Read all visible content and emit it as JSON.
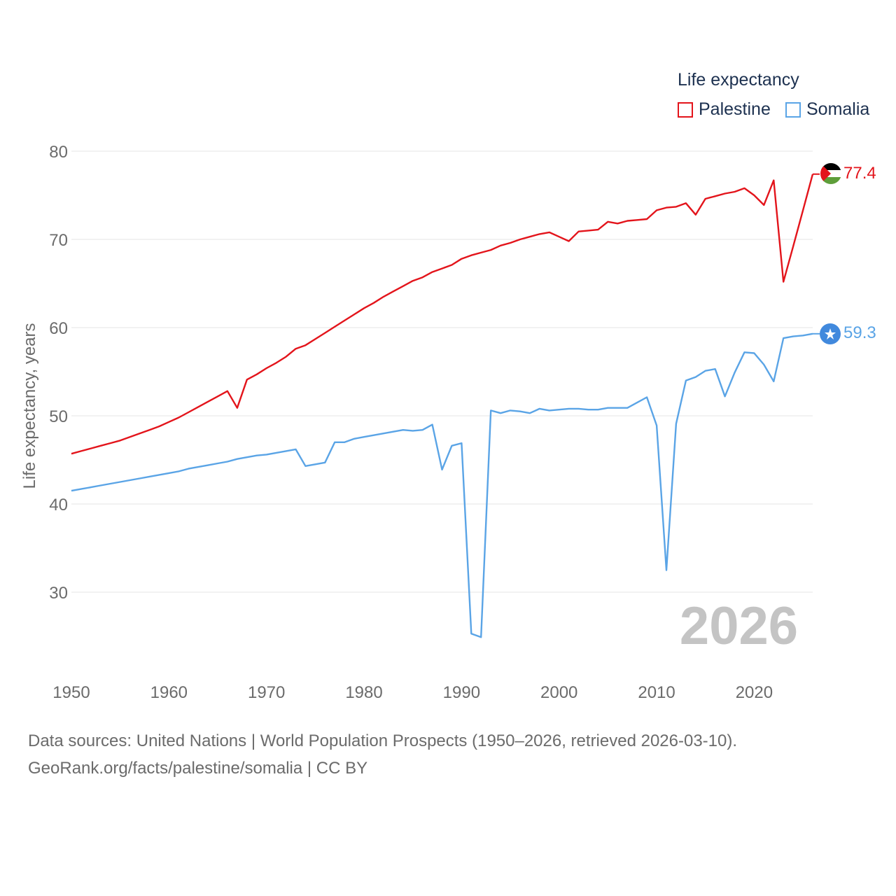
{
  "legend": {
    "title": "Life expectancy"
  },
  "colors": {
    "palestine": "#e3141b",
    "somalia": "#5aa4e6",
    "grid": "#e6e6e6",
    "axis_text": "#6b6b6b",
    "year_watermark": "#c4c4c4"
  },
  "year_watermark": "2026",
  "end_labels": {
    "palestine": "77.4",
    "somalia": "59.3"
  },
  "footer": {
    "line1": "Data sources: United Nations | World Population Prospects (1950–2026, retrieved 2026-03-10).",
    "line2": "GeoRank.org/facts/palestine/somalia | CC BY"
  },
  "chart_data": {
    "type": "line",
    "title": "Life expectancy",
    "xlabel": "",
    "ylabel": "Life expectancy, years",
    "xlim": [
      1950,
      2026
    ],
    "ylim": [
      20,
      80
    ],
    "x_ticks": [
      1950,
      1960,
      1970,
      1980,
      1990,
      2000,
      2010,
      2020
    ],
    "y_ticks": [
      30,
      40,
      50,
      60,
      70,
      80
    ],
    "grid": true,
    "legend_position": "top-right",
    "x": [
      1950,
      1951,
      1952,
      1953,
      1954,
      1955,
      1956,
      1957,
      1958,
      1959,
      1960,
      1961,
      1962,
      1963,
      1964,
      1965,
      1966,
      1967,
      1968,
      1969,
      1970,
      1971,
      1972,
      1973,
      1974,
      1975,
      1976,
      1977,
      1978,
      1979,
      1980,
      1981,
      1982,
      1983,
      1984,
      1985,
      1986,
      1987,
      1988,
      1989,
      1990,
      1991,
      1992,
      1993,
      1994,
      1995,
      1996,
      1997,
      1998,
      1999,
      2000,
      2001,
      2002,
      2003,
      2004,
      2005,
      2006,
      2007,
      2008,
      2009,
      2010,
      2011,
      2012,
      2013,
      2014,
      2015,
      2016,
      2017,
      2018,
      2019,
      2020,
      2021,
      2022,
      2023,
      2024,
      2025,
      2026
    ],
    "series": [
      {
        "name": "Palestine",
        "color": "#e3141b",
        "values": [
          45.7,
          46.0,
          46.3,
          46.6,
          46.9,
          47.2,
          47.6,
          48.0,
          48.4,
          48.8,
          49.3,
          49.8,
          50.4,
          51.0,
          51.6,
          52.2,
          52.8,
          50.9,
          54.1,
          54.7,
          55.4,
          56.0,
          56.7,
          57.6,
          58.0,
          58.7,
          59.4,
          60.1,
          60.8,
          61.5,
          62.2,
          62.8,
          63.5,
          64.1,
          64.7,
          65.3,
          65.7,
          66.3,
          66.7,
          67.1,
          67.8,
          68.2,
          68.5,
          68.8,
          69.3,
          69.6,
          70.0,
          70.3,
          70.6,
          70.8,
          70.3,
          69.8,
          70.9,
          71.0,
          71.1,
          72.0,
          71.8,
          72.1,
          72.2,
          72.3,
          73.3,
          73.6,
          73.7,
          74.1,
          72.8,
          74.6,
          74.9,
          75.2,
          75.4,
          75.8,
          75.0,
          73.9,
          76.7,
          65.2,
          69.2,
          73.3,
          77.4
        ]
      },
      {
        "name": "Somalia",
        "color": "#5aa4e6",
        "values": [
          41.5,
          41.7,
          41.9,
          42.1,
          42.3,
          42.5,
          42.7,
          42.9,
          43.1,
          43.3,
          43.5,
          43.7,
          44.0,
          44.2,
          44.4,
          44.6,
          44.8,
          45.1,
          45.3,
          45.5,
          45.6,
          45.8,
          46.0,
          46.2,
          44.3,
          44.5,
          44.7,
          47.0,
          47.0,
          47.4,
          47.6,
          47.8,
          48.0,
          48.2,
          48.4,
          48.3,
          48.4,
          49.0,
          43.9,
          46.6,
          46.9,
          25.3,
          24.9,
          50.6,
          50.3,
          50.6,
          50.5,
          50.3,
          50.8,
          50.6,
          50.7,
          50.8,
          50.8,
          50.7,
          50.7,
          50.9,
          50.9,
          50.9,
          51.5,
          52.1,
          48.9,
          32.5,
          49.1,
          54.0,
          54.4,
          55.1,
          55.3,
          52.2,
          54.9,
          57.2,
          57.1,
          55.8,
          53.9,
          58.8,
          59.0,
          59.1,
          59.3
        ]
      }
    ]
  }
}
